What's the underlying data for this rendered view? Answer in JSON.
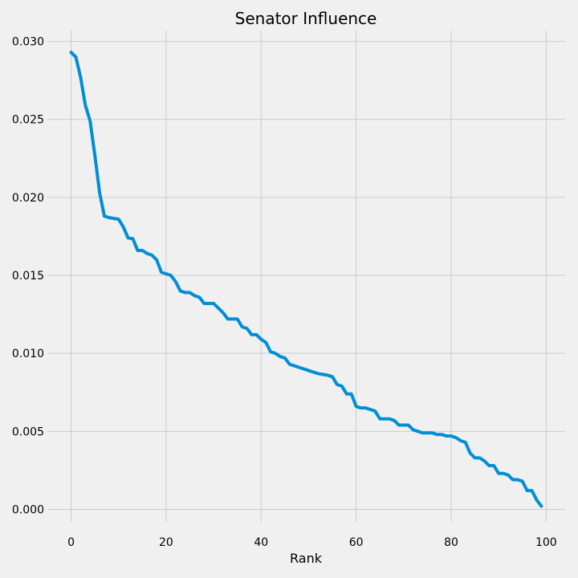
{
  "chart_data": {
    "type": "line",
    "title": "Senator Influence",
    "xlabel": "Rank",
    "ylabel": "",
    "xlim": [
      -5,
      104
    ],
    "ylim": [
      -0.0008,
      0.0307
    ],
    "xticks": [
      0,
      20,
      40,
      60,
      80,
      100
    ],
    "xtick_labels": [
      "0",
      "20",
      "40",
      "60",
      "80",
      "100"
    ],
    "yticks": [
      0.0,
      0.005,
      0.01,
      0.015,
      0.02,
      0.025,
      0.03
    ],
    "ytick_labels": [
      "0.000",
      "0.005",
      "0.010",
      "0.015",
      "0.020",
      "0.025",
      "0.030"
    ],
    "grid": true,
    "colors": {
      "background": "#f0f0f0",
      "grid": "#cbcbcb",
      "line": "#008fd5"
    },
    "series": [
      {
        "color": "#008fd5",
        "x": [
          0,
          1,
          2,
          3,
          4,
          5,
          6,
          7,
          8,
          9,
          10,
          11,
          12,
          13,
          14,
          15,
          16,
          17,
          18,
          19,
          20,
          21,
          22,
          23,
          24,
          25,
          26,
          27,
          28,
          29,
          30,
          31,
          32,
          33,
          34,
          35,
          36,
          37,
          38,
          39,
          40,
          41,
          42,
          43,
          44,
          45,
          46,
          47,
          48,
          49,
          50,
          51,
          52,
          53,
          54,
          55,
          56,
          57,
          58,
          59,
          60,
          61,
          62,
          63,
          64,
          65,
          66,
          67,
          68,
          69,
          70,
          71,
          72,
          73,
          74,
          75,
          76,
          77,
          78,
          79,
          80,
          81,
          82,
          83,
          84,
          85,
          86,
          87,
          88,
          89,
          90,
          91,
          92,
          93,
          94,
          95,
          96,
          97,
          98,
          99
        ],
        "values": [
          0.0293,
          0.029,
          0.0277,
          0.0259,
          0.0249,
          0.0227,
          0.0203,
          0.0188,
          0.0187,
          0.01865,
          0.0186,
          0.0181,
          0.0174,
          0.01735,
          0.0166,
          0.0166,
          0.0164,
          0.0163,
          0.016,
          0.0152,
          0.0151,
          0.015,
          0.0146,
          0.014,
          0.0139,
          0.0139,
          0.0137,
          0.0136,
          0.0132,
          0.0132,
          0.0132,
          0.0129,
          0.0126,
          0.0122,
          0.0122,
          0.0122,
          0.0117,
          0.0116,
          0.0112,
          0.0112,
          0.0109,
          0.0107,
          0.0101,
          0.01,
          0.0098,
          0.0097,
          0.0093,
          0.0092,
          0.0091,
          0.009,
          0.0089,
          0.0088,
          0.0087,
          0.00865,
          0.0086,
          0.0085,
          0.008,
          0.0079,
          0.0074,
          0.0074,
          0.0066,
          0.0065,
          0.0065,
          0.0064,
          0.0063,
          0.0058,
          0.0058,
          0.0058,
          0.0057,
          0.0054,
          0.0054,
          0.0054,
          0.0051,
          0.005,
          0.0049,
          0.0049,
          0.0049,
          0.0048,
          0.0048,
          0.0047,
          0.0047,
          0.0046,
          0.0044,
          0.0043,
          0.0036,
          0.0033,
          0.0033,
          0.0031,
          0.0028,
          0.0028,
          0.0023,
          0.0023,
          0.0022,
          0.0019,
          0.0019,
          0.0018,
          0.0012,
          0.0012,
          0.0006,
          0.0002
        ]
      }
    ]
  }
}
